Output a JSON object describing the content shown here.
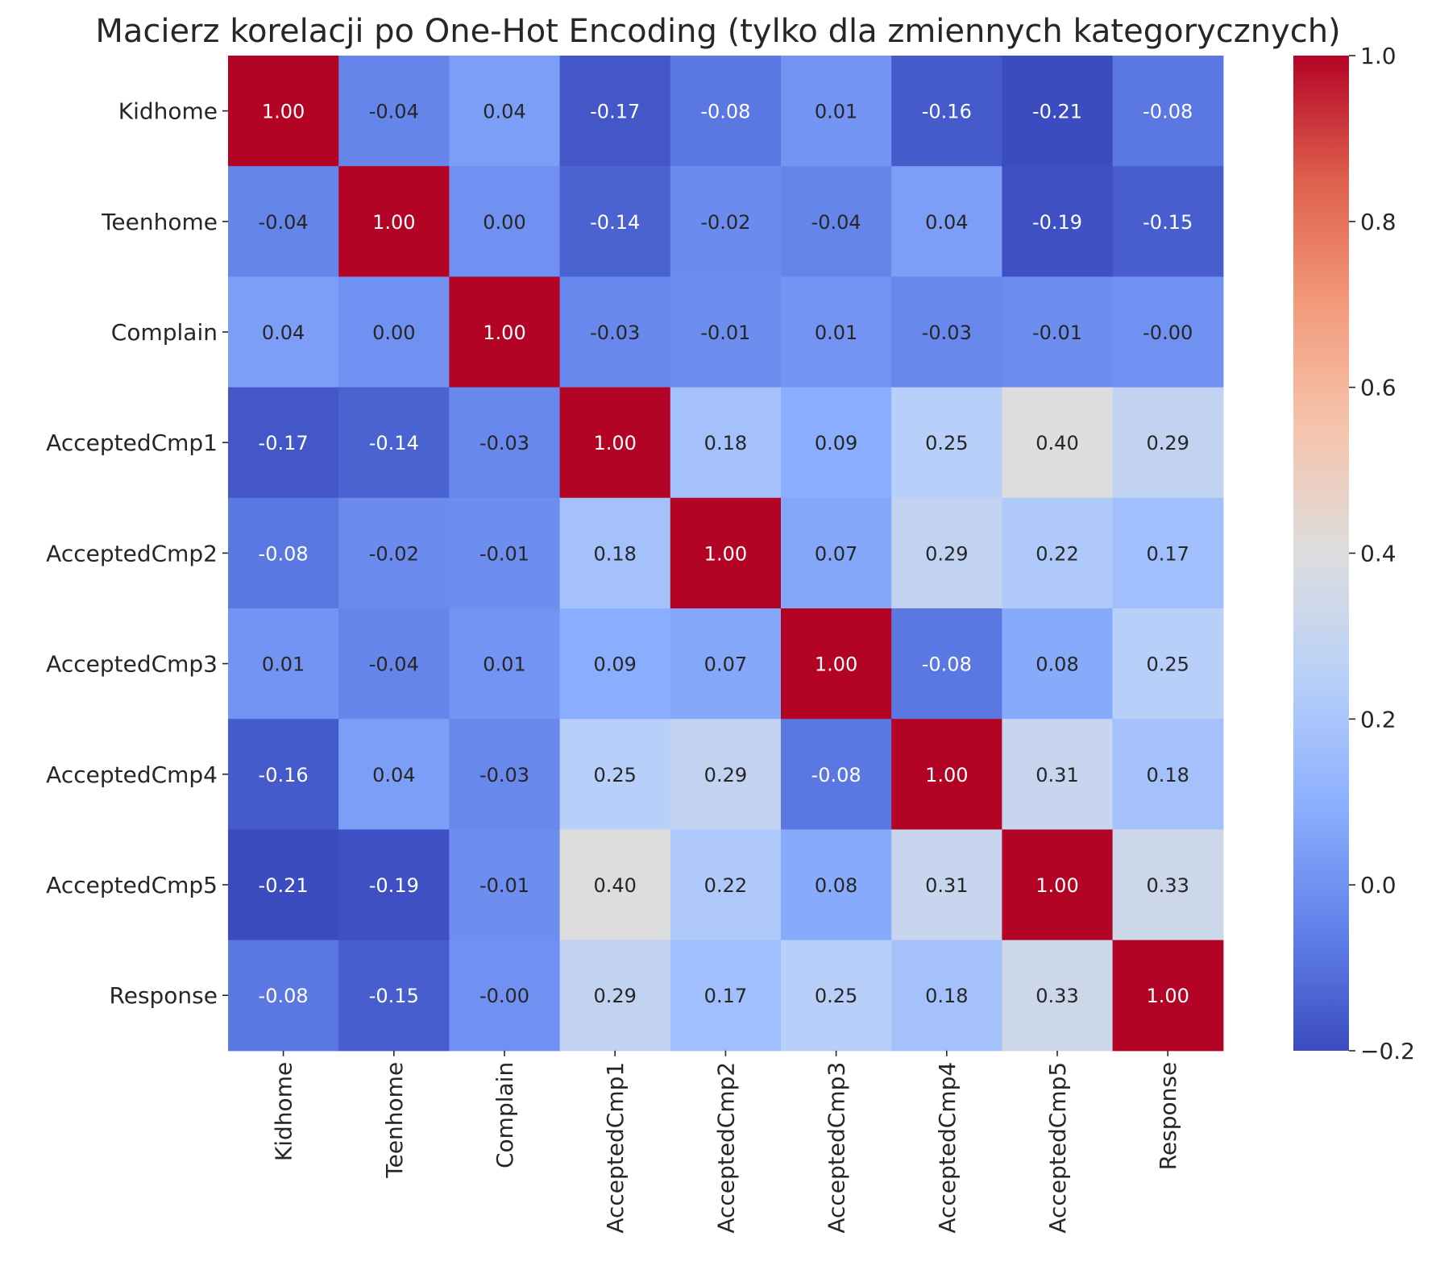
{
  "chart_data": {
    "type": "heatmap",
    "title": "Macierz korelacji po One-Hot Encoding (tylko dla zmiennych kategorycznych)",
    "rows": [
      "Kidhome",
      "Teenhome",
      "Complain",
      "AcceptedCmp1",
      "AcceptedCmp2",
      "AcceptedCmp3",
      "AcceptedCmp4",
      "AcceptedCmp5",
      "Response"
    ],
    "columns": [
      "Kidhome",
      "Teenhome",
      "Complain",
      "AcceptedCmp1",
      "AcceptedCmp2",
      "AcceptedCmp3",
      "AcceptedCmp4",
      "AcceptedCmp5",
      "Response"
    ],
    "values": [
      [
        1.0,
        -0.04,
        0.04,
        -0.17,
        -0.08,
        0.01,
        -0.16,
        -0.21,
        -0.08
      ],
      [
        -0.04,
        1.0,
        0.0,
        -0.14,
        -0.02,
        -0.04,
        0.04,
        -0.19,
        -0.15
      ],
      [
        0.04,
        0.0,
        1.0,
        -0.03,
        -0.01,
        0.01,
        -0.03,
        -0.01,
        -0.0
      ],
      [
        -0.17,
        -0.14,
        -0.03,
        1.0,
        0.18,
        0.09,
        0.25,
        0.4,
        0.29
      ],
      [
        -0.08,
        -0.02,
        -0.01,
        0.18,
        1.0,
        0.07,
        0.29,
        0.22,
        0.17
      ],
      [
        0.01,
        -0.04,
        0.01,
        0.09,
        0.07,
        1.0,
        -0.08,
        0.08,
        0.25
      ],
      [
        -0.16,
        0.04,
        -0.03,
        0.25,
        0.29,
        -0.08,
        1.0,
        0.31,
        0.18
      ],
      [
        -0.21,
        -0.19,
        -0.01,
        0.4,
        0.22,
        0.08,
        0.31,
        1.0,
        0.33
      ],
      [
        -0.08,
        -0.15,
        -0.0,
        0.29,
        0.17,
        0.25,
        0.18,
        0.33,
        1.0
      ]
    ],
    "cell_labels": [
      [
        "1.00",
        "-0.04",
        "0.04",
        "-0.17",
        "-0.08",
        "0.01",
        "-0.16",
        "-0.21",
        "-0.08"
      ],
      [
        "-0.04",
        "1.00",
        "0.00",
        "-0.14",
        "-0.02",
        "-0.04",
        "0.04",
        "-0.19",
        "-0.15"
      ],
      [
        "0.04",
        "0.00",
        "1.00",
        "-0.03",
        "-0.01",
        "0.01",
        "-0.03",
        "-0.01",
        "-0.00"
      ],
      [
        "-0.17",
        "-0.14",
        "-0.03",
        "1.00",
        "0.18",
        "0.09",
        "0.25",
        "0.40",
        "0.29"
      ],
      [
        "-0.08",
        "-0.02",
        "-0.01",
        "0.18",
        "1.00",
        "0.07",
        "0.29",
        "0.22",
        "0.17"
      ],
      [
        "0.01",
        "-0.04",
        "0.01",
        "0.09",
        "0.07",
        "1.00",
        "-0.08",
        "0.08",
        "0.25"
      ],
      [
        "-0.16",
        "0.04",
        "-0.03",
        "0.25",
        "0.29",
        "-0.08",
        "1.00",
        "0.31",
        "0.18"
      ],
      [
        "-0.21",
        "-0.19",
        "-0.01",
        "0.40",
        "0.22",
        "0.08",
        "0.31",
        "1.00",
        "0.33"
      ],
      [
        "-0.08",
        "-0.15",
        "-0.00",
        "0.29",
        "0.17",
        "0.25",
        "0.18",
        "0.33",
        "1.00"
      ]
    ],
    "colormap": "coolwarm",
    "color_range": [
      -0.2,
      1.0
    ],
    "colorbar_ticks": [
      -0.2,
      0.0,
      0.2,
      0.4,
      0.6,
      0.8,
      1.0
    ],
    "colorbar_tick_labels": [
      "−0.2",
      "0.0",
      "0.2",
      "0.4",
      "0.6",
      "0.8",
      "1.0"
    ],
    "colorbar_placement": "right",
    "grid": false
  }
}
